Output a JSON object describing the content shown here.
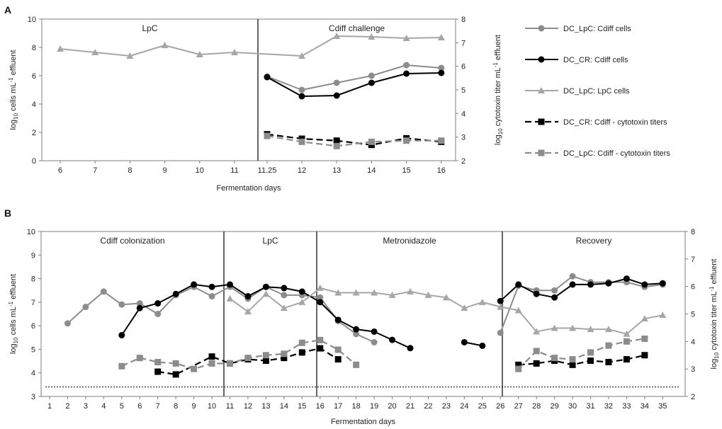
{
  "chart_data": [
    {
      "type": "line",
      "panel_label": "A",
      "phases": [
        "LpC",
        "Cdiff challenge"
      ],
      "x_ticks": [
        "6",
        "7",
        "8",
        "9",
        "10",
        "11",
        "11.25",
        "12",
        "13",
        "14",
        "15",
        "16"
      ],
      "xlabel": "Fermentation days",
      "ylabel_left": {
        "prefix": "log",
        "sub": "10",
        "mid": " cells mL",
        "sup": "-1",
        "suffix": " effluent"
      },
      "ylabel_right": {
        "prefix": "log",
        "sub": "10",
        "mid": " cytotoxin titer mL",
        "sup": "-1",
        "suffix": " effluent"
      },
      "ylim_left": [
        0,
        10
      ],
      "ylim_right": [
        2,
        8
      ],
      "left_ticks": [
        "0",
        "2",
        "4",
        "6",
        "8",
        "10"
      ],
      "right_ticks": [
        "2",
        "3",
        "4",
        "5",
        "6",
        "7",
        "8"
      ],
      "series": [
        {
          "name": "DC_LpC: Cdiff cells",
          "axis": "left",
          "style": "circle-light",
          "x": [
            11.25,
            12,
            13,
            14,
            15,
            16
          ],
          "values": [
            5.95,
            5.0,
            5.5,
            6.0,
            6.75,
            6.55
          ]
        },
        {
          "name": "DC_CR: Cdiff cells",
          "axis": "left",
          "style": "circle-dark",
          "x": [
            11.25,
            12,
            13,
            14,
            15,
            16
          ],
          "values": [
            5.9,
            4.55,
            4.6,
            5.5,
            6.15,
            6.2
          ]
        },
        {
          "name": "DC_LpC: LpC cells",
          "axis": "left",
          "style": "triangle",
          "x": [
            6,
            7,
            8,
            9,
            10,
            11,
            12,
            13,
            14,
            15,
            16
          ],
          "values": [
            7.9,
            7.65,
            7.4,
            8.15,
            7.5,
            7.65,
            7.4,
            8.8,
            8.75,
            8.65,
            8.7
          ]
        },
        {
          "name": "DC_CR: Cdiff - cytotoxin titers",
          "axis": "right",
          "style": "square-dark",
          "x": [
            11.25,
            12,
            13,
            14,
            15,
            16
          ],
          "values": [
            3.12,
            2.93,
            2.85,
            2.67,
            2.95,
            2.8
          ]
        },
        {
          "name": "DC_LpC: Cdiff - cytotoxin titers",
          "axis": "right",
          "style": "square-light",
          "x": [
            11.25,
            12,
            13,
            14,
            15,
            16
          ],
          "values": [
            3.05,
            2.8,
            2.62,
            2.8,
            2.85,
            2.85
          ]
        }
      ]
    },
    {
      "type": "line",
      "panel_label": "B",
      "phases": [
        "Cdiff colonization",
        "LpC",
        "Metronidazole",
        "Recovery"
      ],
      "x_ticks": [
        "1",
        "2",
        "3",
        "4",
        "5",
        "6",
        "7",
        "8",
        "9",
        "10",
        "11",
        "12",
        "13",
        "14",
        "15",
        "16",
        "17",
        "18",
        "19",
        "20",
        "21",
        "22",
        "23",
        "24",
        "25",
        "26",
        "27",
        "28",
        "29",
        "30",
        "31",
        "32",
        "33",
        "34",
        "35"
      ],
      "xlabel": "Fermentation days",
      "ylabel_left": {
        "prefix": "log",
        "sub": "10",
        "mid": " cells mL",
        "sup": "-1",
        "suffix": " effluent"
      },
      "ylabel_right": {
        "prefix": "log",
        "sub": "10",
        "mid": " cytotoxin titer mL",
        "sup": "-1",
        "suffix": " effluent"
      },
      "ylim_left": [
        3,
        10
      ],
      "ylim_right": [
        2,
        8
      ],
      "left_ticks": [
        "3",
        "4",
        "5",
        "6",
        "7",
        "8",
        "9",
        "10"
      ],
      "right_ticks": [
        "2",
        "3",
        "4",
        "5",
        "6",
        "7",
        "8"
      ],
      "detection_limit_left": 3.4,
      "series": [
        {
          "name": "DC_LpC: Cdiff cells",
          "axis": "left",
          "style": "circle-light",
          "x": [
            2,
            3,
            4,
            5,
            6,
            7,
            8,
            9,
            10,
            11,
            12,
            13,
            14,
            15,
            16,
            17,
            18,
            19
          ],
          "values": [
            6.1,
            6.8,
            7.45,
            6.9,
            6.95,
            6.5,
            7.3,
            7.65,
            7.25,
            7.65,
            7.15,
            7.65,
            7.3,
            7.3,
            7.2,
            6.2,
            5.65,
            5.3
          ]
        },
        {
          "name": "DC_LpC: Cdiff cells",
          "axis": "left",
          "style": "circle-light",
          "x": [
            26,
            27,
            28,
            29,
            30,
            31,
            32,
            33,
            34,
            35
          ],
          "values": [
            5.7,
            7.7,
            7.5,
            7.5,
            8.1,
            7.85,
            7.85,
            7.85,
            7.65,
            7.75
          ]
        },
        {
          "name": "DC_CR: Cdiff cells",
          "axis": "left",
          "style": "circle-dark",
          "x": [
            5,
            6,
            7,
            8,
            9,
            10,
            11,
            12,
            13,
            14,
            15,
            16,
            17,
            18,
            19,
            20,
            21
          ],
          "values": [
            5.6,
            6.75,
            6.95,
            7.35,
            7.75,
            7.65,
            7.75,
            7.25,
            7.65,
            7.6,
            7.45,
            7.0,
            6.25,
            5.85,
            5.75,
            5.4,
            5.05
          ]
        },
        {
          "name": "DC_CR: Cdiff cells",
          "axis": "left",
          "style": "circle-dark",
          "x": [
            24,
            25
          ],
          "values": [
            5.3,
            5.15
          ]
        },
        {
          "name": "DC_CR: Cdiff cells",
          "axis": "left",
          "style": "circle-dark",
          "x": [
            26,
            27,
            28,
            29,
            30,
            31,
            32,
            33,
            34,
            35
          ],
          "values": [
            7.05,
            7.75,
            7.35,
            7.2,
            7.75,
            7.75,
            7.8,
            8.0,
            7.75,
            7.8
          ]
        },
        {
          "name": "DC_LpC: LpC cells",
          "axis": "left",
          "style": "triangle",
          "x": [
            11,
            12,
            13,
            14,
            15,
            16,
            17,
            18,
            19,
            20,
            21,
            22,
            23,
            24,
            25,
            26,
            27,
            28,
            29,
            30,
            31,
            32,
            33,
            34,
            35
          ],
          "values": [
            7.15,
            6.6,
            7.35,
            6.75,
            7.0,
            7.6,
            7.4,
            7.4,
            7.4,
            7.3,
            7.45,
            7.3,
            7.2,
            6.75,
            7.0,
            6.8,
            6.65,
            5.75,
            5.9,
            5.9,
            5.85,
            5.85,
            5.65,
            6.3,
            6.45
          ]
        },
        {
          "name": "DC_CR: Cdiff - cytotoxin titers",
          "axis": "right",
          "style": "square-dark",
          "x": [
            7,
            8,
            10,
            11,
            12,
            13,
            14,
            15,
            16,
            17
          ],
          "values": [
            2.9,
            2.8,
            3.45,
            3.2,
            3.35,
            3.3,
            3.4,
            3.6,
            3.75,
            3.35
          ]
        },
        {
          "name": "DC_CR: Cdiff - cytotoxin titers",
          "axis": "right",
          "style": "square-dark",
          "x": [
            27,
            28,
            29,
            30,
            31,
            32,
            33,
            34
          ],
          "values": [
            3.15,
            3.2,
            3.3,
            3.15,
            3.3,
            3.25,
            3.35,
            3.5
          ]
        },
        {
          "name": "DC_LpC: Cdiff - cytotoxin titers",
          "axis": "right",
          "style": "square-light",
          "x": [
            5,
            6,
            7,
            8,
            9,
            10,
            11,
            12,
            13,
            14,
            15,
            16,
            17,
            18
          ],
          "values": [
            3.1,
            3.4,
            3.25,
            3.2,
            3.0,
            3.2,
            3.2,
            3.4,
            3.5,
            3.55,
            3.95,
            4.05,
            3.7,
            3.15
          ]
        },
        {
          "name": "DC_LpC: Cdiff - cytotoxin titers",
          "axis": "right",
          "style": "square-light",
          "x": [
            27,
            28,
            29,
            30,
            31,
            32,
            33,
            34
          ],
          "values": [
            3.0,
            3.65,
            3.4,
            3.35,
            3.6,
            3.85,
            4.0,
            4.1
          ]
        }
      ]
    }
  ],
  "legend": {
    "items": [
      {
        "label": "DC_LpC: Cdiff cells",
        "style": "circle-light"
      },
      {
        "label": "DC_CR: Cdiff cells",
        "style": "circle-dark"
      },
      {
        "label": "DC_LpC: LpC cells",
        "style": "triangle"
      },
      {
        "label": "DC_CR: Cdiff - cytotoxin titers",
        "style": "square-dark"
      },
      {
        "label": "DC_LpC: Cdiff - cytotoxin titers",
        "style": "square-light"
      }
    ]
  },
  "colors": {
    "circle-light": "#8c8c8c",
    "circle-dark": "#000000",
    "triangle": "#a6a6a6",
    "square-dark": "#000000",
    "square-light": "#8c8c8c"
  }
}
